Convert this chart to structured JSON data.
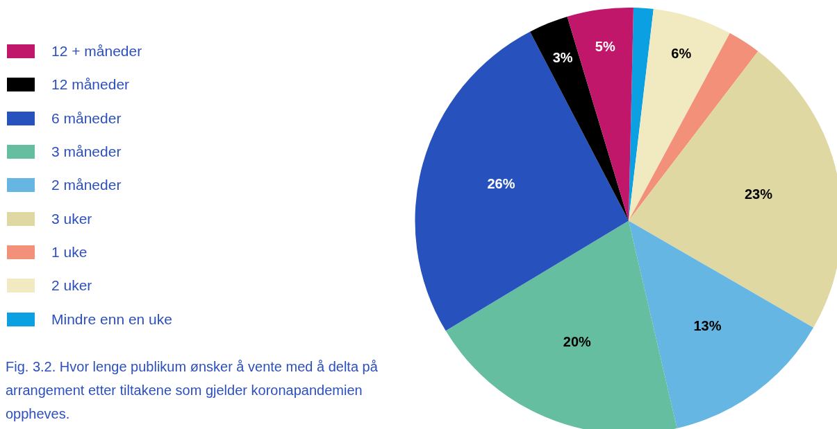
{
  "chart_data": {
    "type": "pie",
    "legend": "left",
    "categories": [
      "Mindre enn en uke",
      "2 uker",
      "1 uke",
      "3 uker",
      "2 måneder",
      "3 måneder",
      "6 måneder",
      "12 måneder",
      "12 + måneder"
    ],
    "values": [
      1.5,
      6,
      2.5,
      23,
      13,
      20,
      26,
      3,
      5
    ],
    "value_labels": [
      null,
      "6%",
      null,
      "23%",
      "13%",
      "20%",
      "26%",
      "3%",
      "5%"
    ],
    "colors": [
      "#0aa0e2",
      "#f1e9bf",
      "#f2907a",
      "#e0d8a2",
      "#66b6e3",
      "#66bea0",
      "#2752be",
      "#000000",
      "#c0176b"
    ],
    "annotations": [
      "Fig. 3.2. Hvor lenge publikum ønsker å vente med å delta på arrangement etter tiltakene som gjelder koronapandemien oppheves."
    ]
  }
}
